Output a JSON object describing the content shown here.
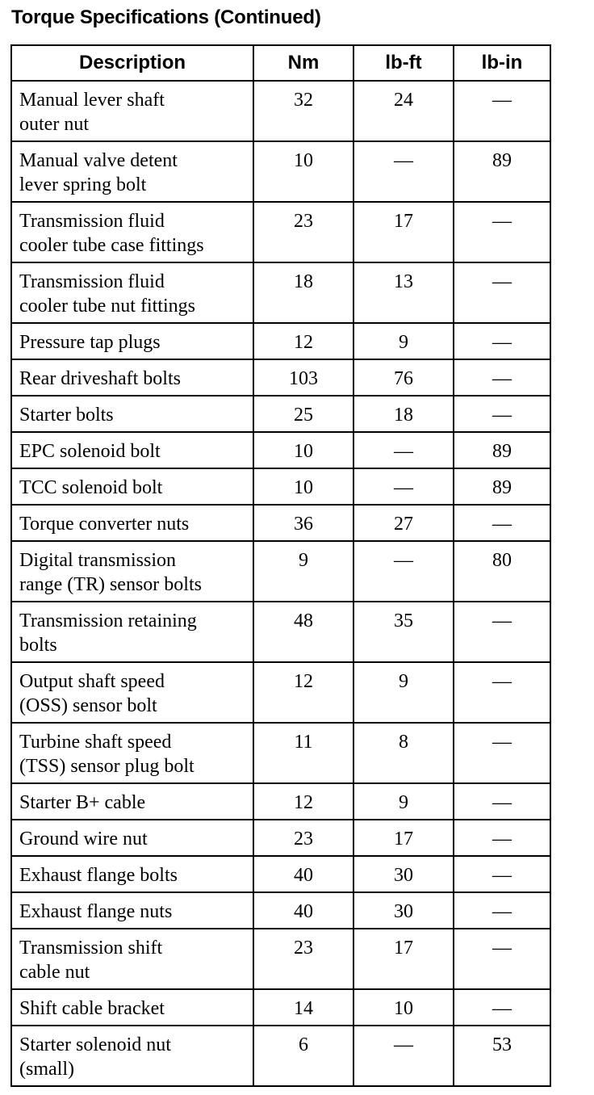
{
  "title": "Torque Specifications (Continued)",
  "columns": [
    "Description",
    "Nm",
    "lb-ft",
    "lb-in"
  ],
  "rows": [
    {
      "description": [
        "Manual lever shaft",
        "outer nut"
      ],
      "nm": "32",
      "lbft": "24",
      "lbin": "—"
    },
    {
      "description": [
        "Manual valve detent",
        "lever spring bolt"
      ],
      "nm": "10",
      "lbft": "—",
      "lbin": "89"
    },
    {
      "description": [
        "Transmission fluid",
        "cooler tube case fittings"
      ],
      "nm": "23",
      "lbft": "17",
      "lbin": "—"
    },
    {
      "description": [
        "Transmission fluid",
        "cooler tube nut fittings"
      ],
      "nm": "18",
      "lbft": "13",
      "lbin": "—"
    },
    {
      "description": [
        "Pressure tap plugs"
      ],
      "nm": "12",
      "lbft": "9",
      "lbin": "—"
    },
    {
      "description": [
        "Rear driveshaft bolts"
      ],
      "nm": "103",
      "lbft": "76",
      "lbin": "—"
    },
    {
      "description": [
        "Starter bolts"
      ],
      "nm": "25",
      "lbft": "18",
      "lbin": "—"
    },
    {
      "description": [
        "EPC solenoid bolt"
      ],
      "nm": "10",
      "lbft": "—",
      "lbin": "89"
    },
    {
      "description": [
        "TCC solenoid bolt"
      ],
      "nm": "10",
      "lbft": "—",
      "lbin": "89"
    },
    {
      "description": [
        "Torque converter nuts"
      ],
      "nm": "36",
      "lbft": "27",
      "lbin": "—"
    },
    {
      "description": [
        "Digital transmission",
        "range (TR) sensor bolts"
      ],
      "nm": "9",
      "lbft": "—",
      "lbin": "80"
    },
    {
      "description": [
        "Transmission retaining",
        "bolts"
      ],
      "nm": "48",
      "lbft": "35",
      "lbin": "—"
    },
    {
      "description": [
        "Output shaft speed",
        "(OSS) sensor bolt"
      ],
      "nm": "12",
      "lbft": "9",
      "lbin": "—"
    },
    {
      "description": [
        "Turbine shaft speed",
        "(TSS) sensor plug bolt"
      ],
      "nm": "11",
      "lbft": "8",
      "lbin": "—"
    },
    {
      "description": [
        "Starter B+ cable"
      ],
      "nm": "12",
      "lbft": "9",
      "lbin": "—"
    },
    {
      "description": [
        "Ground wire nut"
      ],
      "nm": "23",
      "lbft": "17",
      "lbin": "—"
    },
    {
      "description": [
        "Exhaust flange bolts"
      ],
      "nm": "40",
      "lbft": "30",
      "lbin": "—"
    },
    {
      "description": [
        "Exhaust flange nuts"
      ],
      "nm": "40",
      "lbft": "30",
      "lbin": "—"
    },
    {
      "description": [
        "Transmission shift",
        "cable nut"
      ],
      "nm": "23",
      "lbft": "17",
      "lbin": "—"
    },
    {
      "description": [
        "Shift cable bracket"
      ],
      "nm": "14",
      "lbft": "10",
      "lbin": "—"
    },
    {
      "description": [
        "Starter solenoid nut",
        "(small)"
      ],
      "nm": "6",
      "lbft": "—",
      "lbin": "53"
    }
  ]
}
